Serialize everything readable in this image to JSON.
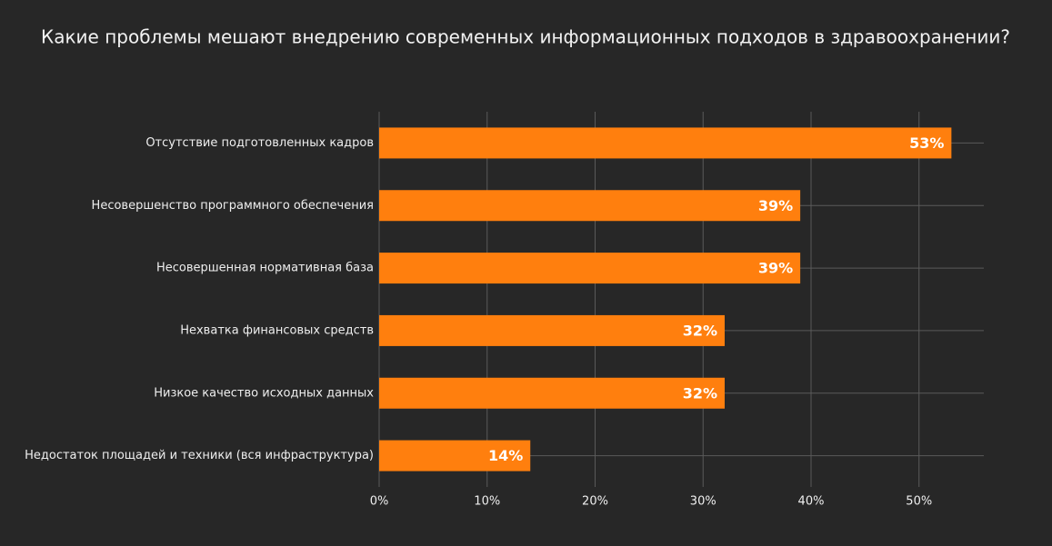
{
  "chart_data": {
    "type": "bar",
    "orientation": "horizontal",
    "title": "Какие проблемы мешают внедрению современных информационных подходов в здравоохранении?",
    "categories": [
      "Отсутствие подготовленных кадров",
      "Несовершенство программного обеспечения",
      "Несовершенная нормативная база",
      "Нехватка финансовых средств",
      "Низкое качество исходных данных",
      "Недостаток площадей и техники (вся инфраструктура)"
    ],
    "values": [
      53,
      39,
      39,
      32,
      32,
      14
    ],
    "value_labels": [
      "53%",
      "39%",
      "39%",
      "32%",
      "32%",
      "14%"
    ],
    "color": "#ff7f0e",
    "xlim": [
      0,
      56
    ],
    "xticks": [
      {
        "value": 0,
        "label": "0%"
      },
      {
        "value": 10,
        "label": "10%"
      },
      {
        "value": 20,
        "label": "20%"
      },
      {
        "value": 30,
        "label": "30%"
      },
      {
        "value": 40,
        "label": "40%"
      },
      {
        "value": 50,
        "label": "50%"
      }
    ],
    "grid": true
  }
}
